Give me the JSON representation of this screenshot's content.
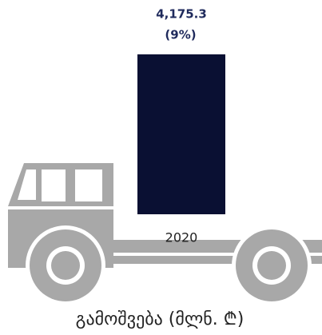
{
  "chart_data": {
    "type": "bar",
    "title": "გამოშვება (მლნ. ₾)",
    "annotation": "(9%)",
    "categories": [
      "2020"
    ],
    "values": [
      4175.3
    ],
    "value_labels": [
      "4,175.3"
    ],
    "color": "#0a1033"
  }
}
